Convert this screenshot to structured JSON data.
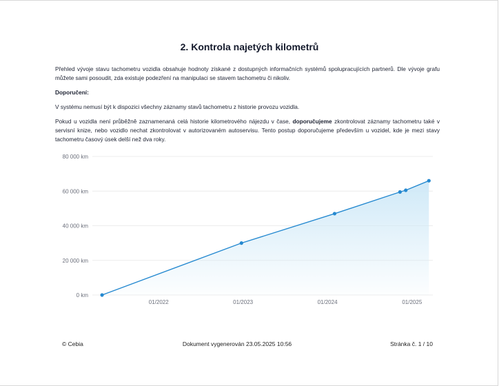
{
  "document": {
    "title": "2. Kontrola najetých kilometrů",
    "paragraph1": "Přehled vývoje stavu tachometru vozidla obsahuje hodnoty získané z dostupných informačních systémů spolupracujících partnerů. Dle vývoje grafu můžete sami posoudit, zda existuje podezření na manipulaci se stavem tachometru či nikoliv.",
    "recommendation_heading": "Doporučení:",
    "paragraph2": "V systému nemusí být k dispozici všechny záznamy stavů tachometru z historie provozu vozidla.",
    "paragraph3_part1": "Pokud u vozidla není průběžně zaznamenaná celá historie kilometrového nájezdu v čase, ",
    "paragraph3_bold": "doporučujeme",
    "paragraph3_part2": " zkontrolovat záznamy tachometru také v servisní knize, nebo vozidlo nechat zkontrolovat v autorizovaném autoservisu. Tento postup doporučujeme především u vozidel, kde je mezi stavy tachometru časový úsek delší než dva roky."
  },
  "chart_data": {
    "type": "area",
    "title": "",
    "xlabel": "",
    "ylabel": "",
    "ylim": [
      0,
      80000
    ],
    "xlim": [
      "2021-04-01",
      "2025-04-01"
    ],
    "y_ticks": [
      "0 km",
      "20 000 km",
      "40 000 km",
      "60 000 km",
      "80 000 km"
    ],
    "x_ticks": [
      "01/2022",
      "01/2023",
      "01/2024",
      "01/2025"
    ],
    "grid": true,
    "series": [
      {
        "x": [
          "2021-05-01",
          "2022-12-25",
          "2024-02-01",
          "2024-11-10",
          "2024-12-05",
          "2025-03-15"
        ],
        "y": [
          0,
          30000,
          47000,
          59500,
          60500,
          66000
        ]
      }
    ],
    "colors": {
      "line": "#2589d0",
      "fill_top": "#cde8f7",
      "grid": "#ececec",
      "axis_text": "#6b6f7b"
    }
  },
  "footer": {
    "left": "© Cebia",
    "center": "Dokument vygenerován 23.05.2025 10:56",
    "right": "Stránka č. 1 / 10"
  }
}
